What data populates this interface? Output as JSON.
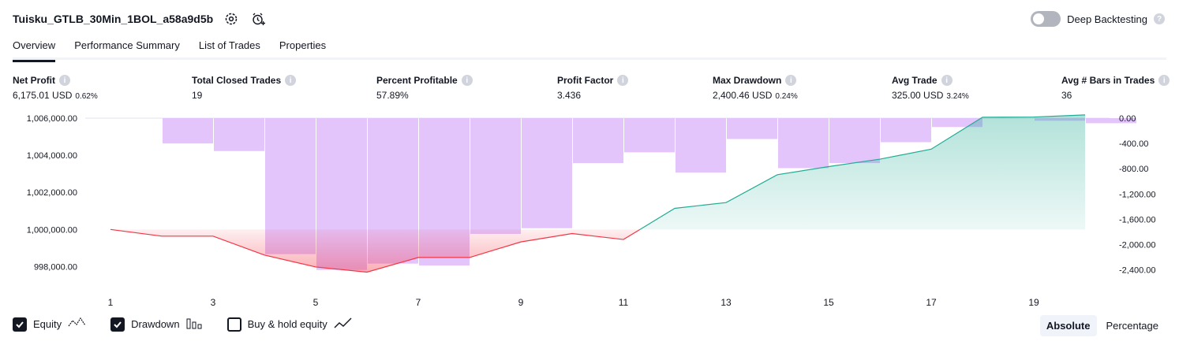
{
  "header": {
    "strategy_name": "Tuisku_GTLB_30Min_1BOL_a58a9d5b",
    "settings_icon": "gear-icon",
    "alert_icon": "alarm-clock-plus-icon",
    "deep_backtesting_label": "Deep Backtesting",
    "deep_backtesting_on": false
  },
  "tabs": [
    {
      "label": "Overview",
      "active": true
    },
    {
      "label": "Performance Summary",
      "active": false
    },
    {
      "label": "List of Trades",
      "active": false
    },
    {
      "label": "Properties",
      "active": false
    }
  ],
  "metrics": {
    "net_profit": {
      "label": "Net Profit",
      "value": "6,175.01 USD",
      "pct": "0.62%"
    },
    "total_closed_trades": {
      "label": "Total Closed Trades",
      "value": "19"
    },
    "percent_profitable": {
      "label": "Percent Profitable",
      "value": "57.89%"
    },
    "profit_factor": {
      "label": "Profit Factor",
      "value": "3.436"
    },
    "max_drawdown": {
      "label": "Max Drawdown",
      "value": "2,400.46 USD",
      "pct": "0.24%"
    },
    "avg_trade": {
      "label": "Avg Trade",
      "value": "325.00 USD",
      "pct": "3.24%"
    },
    "avg_bars": {
      "label": "Avg # Bars in Trades",
      "value": "36"
    }
  },
  "colors": {
    "positive": "#089981",
    "negative": "#f23645",
    "drawdown_bar": "#e1c2fc",
    "equity_line_up": "#22ab94",
    "equity_line_down": "#f23645"
  },
  "chart_data": {
    "type": "line",
    "x": [
      1,
      2,
      3,
      4,
      5,
      6,
      7,
      8,
      9,
      10,
      11,
      12,
      13,
      14,
      15,
      16,
      17,
      18,
      19,
      20
    ],
    "x_tick_labels": [
      "1",
      "3",
      "5",
      "7",
      "9",
      "11",
      "13",
      "15",
      "17",
      "19"
    ],
    "y_left_ticks": [
      "1,006,000.00",
      "1,004,000.00",
      "1,002,000.00",
      "1,000,000.00",
      "998,000.00"
    ],
    "y_right_ticks": [
      "0.00",
      "-400.00",
      "-800.00",
      "-1,200.00",
      "-1,600.00",
      "-2,000.00",
      "-2,400.00"
    ],
    "y_left_range": [
      997000,
      1006000
    ],
    "y_right_range": [
      -2640,
      0
    ],
    "baseline": 1000000,
    "series": [
      {
        "name": "Equity",
        "axis": "left",
        "values": [
          1000000,
          999640,
          999640,
          998620,
          997980,
          997700,
          998490,
          998490,
          999330,
          999780,
          999460,
          1001140,
          1001450,
          1002950,
          1003390,
          1003790,
          1004330,
          1006050,
          1006060,
          1006175
        ]
      },
      {
        "name": "Drawdown",
        "axis": "right",
        "type": "bar",
        "values": [
          0,
          -400,
          -520,
          -2150,
          -2400,
          -2300,
          -2330,
          -1830,
          -1740,
          -710,
          -540,
          -860,
          -330,
          -790,
          -710,
          -380,
          -140,
          0,
          -40,
          -80
        ]
      }
    ],
    "grid": false
  },
  "legend": [
    {
      "label": "Equity",
      "checked": true,
      "icon": "equity-line-icon"
    },
    {
      "label": "Drawdown",
      "checked": true,
      "icon": "drawdown-bars-icon"
    },
    {
      "label": "Buy & hold equity",
      "checked": false,
      "icon": "buy-hold-line-icon"
    }
  ],
  "modes": [
    {
      "label": "Absolute",
      "active": true
    },
    {
      "label": "Percentage",
      "active": false
    }
  ]
}
